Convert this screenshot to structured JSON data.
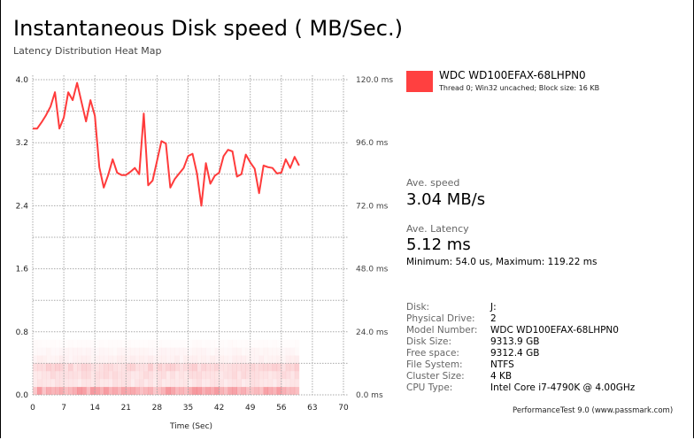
{
  "header": {
    "title": "Instantaneous Disk speed ( MB/Sec.)",
    "subtitle": "Latency Distribution Heat Map"
  },
  "legend": {
    "color": "#ff4040",
    "name": "WDC WD100EFAX-68LHPN0",
    "detail": "Thread 0; Win32 uncached; Block size: 16 KB"
  },
  "stats": {
    "speed_label": "Ave. speed",
    "speed_value": "3.04 MB/s",
    "latency_label": "Ave. Latency",
    "latency_value": "5.12 ms",
    "minmax": "Minimum: 54.0 us, Maximum: 119.22 ms"
  },
  "info": [
    {
      "key": "Disk:",
      "value": "J:"
    },
    {
      "key": "Physical Drive:",
      "value": "2"
    },
    {
      "key": "Model Number:",
      "value": "WDC WD100EFAX-68LHPN0"
    },
    {
      "key": "Disk Size:",
      "value": "9313.9 GB"
    },
    {
      "key": "Free space:",
      "value": "9312.4 GB"
    },
    {
      "key": "File System:",
      "value": "NTFS"
    },
    {
      "key": "Cluster Size:",
      "value": "4 KB"
    },
    {
      "key": "CPU Type:",
      "value": "Intel Core i7-4790K @ 4.00GHz"
    }
  ],
  "footer": "PerformanceTest 9.0 (www.passmark.com)",
  "chart_data": {
    "type": "line",
    "xlabel": "Time (Sec)",
    "xlim": [
      0,
      70
    ],
    "ylim": [
      0,
      4.0
    ],
    "y2lim": [
      0,
      120
    ],
    "grid": true,
    "x_ticks": [
      "0",
      "7",
      "14",
      "21",
      "28",
      "35",
      "42",
      "49",
      "56",
      "63",
      "70"
    ],
    "y_ticks": [
      "0.0",
      "0.8",
      "1.6",
      "2.4",
      "3.2",
      "4.0"
    ],
    "y2_ticks": [
      "0.0 ms",
      "24.0 ms",
      "48.0 ms",
      "72.0 ms",
      "96.0 ms",
      "120.0 ms"
    ],
    "line_color": "#ff3b3b",
    "series": [
      {
        "name": "WDC WD100EFAX-68LHPN0",
        "x": [
          0,
          1,
          2,
          3,
          4,
          5,
          6,
          7,
          8,
          9,
          10,
          11,
          12,
          13,
          14,
          15,
          16,
          17,
          18,
          19,
          20,
          21,
          22,
          23,
          24,
          25,
          26,
          27,
          28,
          29,
          30,
          31,
          32,
          33,
          34,
          35,
          36,
          37,
          38,
          39,
          40,
          41,
          42,
          43,
          44,
          45,
          46,
          47,
          48,
          49,
          50,
          51,
          52,
          53,
          54,
          55,
          56,
          57,
          58,
          59,
          60
        ],
        "values": [
          3.38,
          3.38,
          3.46,
          3.55,
          3.66,
          3.84,
          3.38,
          3.52,
          3.84,
          3.74,
          3.96,
          3.71,
          3.47,
          3.74,
          3.54,
          2.89,
          2.63,
          2.79,
          2.99,
          2.82,
          2.79,
          2.79,
          2.83,
          2.88,
          2.8,
          3.57,
          2.66,
          2.72,
          2.97,
          3.22,
          3.19,
          2.63,
          2.74,
          2.81,
          2.88,
          3.03,
          3.06,
          2.81,
          2.4,
          2.94,
          2.68,
          2.78,
          2.82,
          3.03,
          3.11,
          3.09,
          2.77,
          2.8,
          3.05,
          2.95,
          2.87,
          2.56,
          2.91,
          2.89,
          2.88,
          2.81,
          2.82,
          2.99,
          2.88,
          3.02,
          2.91
        ]
      }
    ],
    "heatmap": {
      "color": "#f0505a",
      "latency_bins_ms": [
        0,
        3,
        6,
        9,
        12,
        15,
        18
      ],
      "intensity": [
        0.45,
        0.14,
        0.17,
        0.22,
        0.08,
        0.05,
        0.02
      ],
      "time_range": [
        0,
        60
      ]
    }
  }
}
